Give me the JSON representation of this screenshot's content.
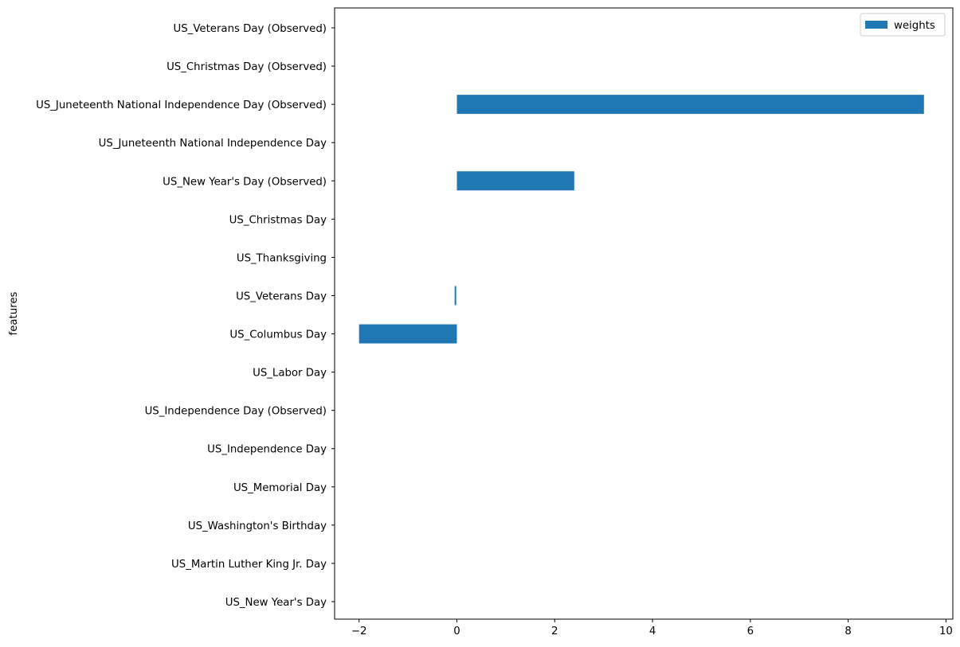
{
  "chart_data": {
    "type": "bar",
    "orientation": "horizontal",
    "title": "",
    "xlabel": "",
    "ylabel": "features",
    "xlim": [
      -2.5,
      10.14
    ],
    "xticks": [
      -2,
      0,
      2,
      4,
      6,
      8,
      10
    ],
    "xtick_labels": [
      "−2",
      "0",
      "2",
      "4",
      "6",
      "8",
      "10"
    ],
    "grid": false,
    "legend_position": "top-right",
    "bar_color": "#1f77b4",
    "categories": [
      "US_New Year's Day",
      "US_Martin Luther King Jr. Day",
      "US_Washington's Birthday",
      "US_Memorial Day",
      "US_Independence Day",
      "US_Independence Day (Observed)",
      "US_Labor Day",
      "US_Columbus Day",
      "US_Veterans Day",
      "US_Thanksgiving",
      "US_Christmas Day",
      "US_New Year's Day (Observed)",
      "US_Juneteenth National Independence Day",
      "US_Juneteenth National Independence Day (Observed)",
      "US_Christmas Day (Observed)",
      "US_Veterans Day (Observed)"
    ],
    "series": [
      {
        "name": "weights",
        "values": [
          0,
          0,
          0,
          0,
          0,
          0,
          0,
          -2.0,
          -0.03,
          0,
          0,
          2.4,
          0,
          9.55,
          0,
          0
        ]
      }
    ]
  }
}
